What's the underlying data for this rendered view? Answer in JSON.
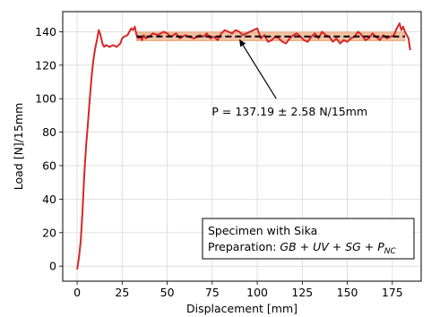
{
  "chart_data": {
    "type": "line",
    "title": "",
    "xlabel": "Displacement [mm]",
    "ylabel": "Load [N]/15mm",
    "xlim": [
      -8,
      191
    ],
    "ylim": [
      -9,
      152
    ],
    "xticks": [
      0,
      25,
      50,
      75,
      100,
      125,
      150,
      175
    ],
    "yticks": [
      0,
      20,
      40,
      60,
      80,
      100,
      120,
      140
    ],
    "grid": true,
    "colors": {
      "load_curve": "#d62728",
      "mean_line": "#000000",
      "band": "#f2c2a4",
      "band_edge": "#e8a070"
    },
    "series": [
      {
        "name": "",
        "style": "solid",
        "x": [
          0,
          1,
          2,
          3,
          4,
          5,
          6,
          7,
          8,
          9,
          10,
          11,
          12,
          13,
          14,
          15,
          16,
          18,
          20,
          22,
          24,
          25,
          26,
          28,
          29,
          30,
          31,
          32,
          33,
          34,
          35,
          36,
          37,
          38,
          40,
          42,
          45,
          48,
          50,
          52,
          55,
          57,
          60,
          62,
          65,
          68,
          70,
          72,
          74,
          76,
          78,
          80,
          82,
          84,
          86,
          88,
          90,
          92,
          94,
          96,
          98,
          100,
          102,
          104,
          106,
          108,
          110,
          112,
          114,
          116,
          118,
          120,
          122,
          124,
          126,
          128,
          130,
          132,
          134,
          136,
          138,
          140,
          142,
          144,
          146,
          148,
          150,
          152,
          154,
          156,
          158,
          160,
          162,
          164,
          166,
          168,
          170,
          172,
          174,
          176,
          177,
          178,
          179,
          180,
          181,
          182,
          183,
          184,
          184.5,
          185
        ],
        "y": [
          -2,
          5,
          15,
          33,
          55,
          72,
          85,
          100,
          113,
          123,
          130,
          135,
          141,
          138,
          133,
          131,
          132,
          131,
          132,
          131,
          133,
          136,
          137,
          138,
          140,
          142,
          141,
          143,
          138,
          136,
          137,
          135,
          138,
          136,
          137,
          139,
          138,
          140,
          139,
          137,
          139,
          136,
          138,
          137,
          136,
          138,
          137,
          139,
          136,
          137,
          135,
          139,
          141,
          140,
          139,
          141,
          140,
          138,
          139,
          140,
          141,
          142,
          136,
          138,
          134,
          135,
          137,
          136,
          134,
          133,
          136,
          138,
          139,
          137,
          135,
          134,
          137,
          139,
          136,
          140,
          138,
          137,
          134,
          136,
          133,
          135,
          134,
          136,
          137,
          140,
          138,
          135,
          136,
          139,
          137,
          135,
          138,
          136,
          137,
          138,
          141,
          143,
          145,
          141,
          143,
          140,
          138,
          136,
          132,
          129
        ]
      },
      {
        "name": "",
        "style": "dashed",
        "x": [
          33,
          182
        ],
        "y": [
          137.19,
          137.19
        ]
      }
    ],
    "band": {
      "x": [
        33,
        182
      ],
      "y": [
        134.61,
        139.77
      ]
    },
    "annotation": {
      "text": "P = 137.19 ± 2.58 N/15mm",
      "point": [
        90,
        137.19
      ],
      "text_pos": [
        118,
        92
      ]
    },
    "info_box": {
      "line1": "Specimen with Sika",
      "line2_prefix": "Preparation: ",
      "line2_formula": "GB + UV + SG + P",
      "line2_sub": "NC"
    }
  }
}
